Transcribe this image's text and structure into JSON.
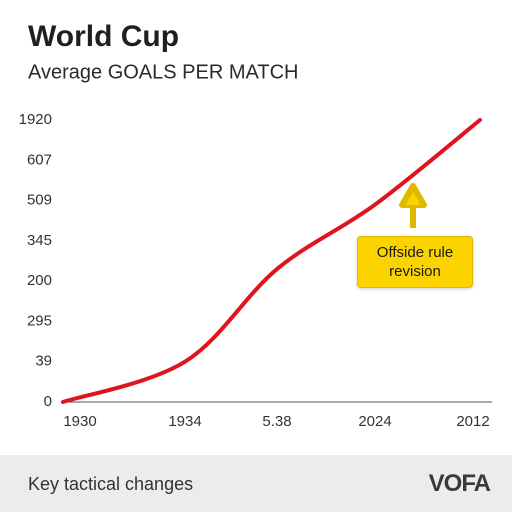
{
  "chart_data": {
    "type": "line",
    "title": "World Cup",
    "subtitle": "Average GOALS PER MATCH",
    "categories": [
      "1930",
      "1934",
      "5.38",
      "2024",
      "2012"
    ],
    "series": [
      {
        "name": null,
        "color": "#e0141e",
        "values": [
          0,
          1.0,
          3.3,
          4.9,
          7.0
        ]
      }
    ],
    "ylim": [
      0,
      7
    ],
    "yticks": [
      {
        "value": 0,
        "label": "0"
      },
      {
        "value": 1,
        "label": "39"
      },
      {
        "value": 2,
        "label": "295"
      },
      {
        "value": 3,
        "label": "200"
      },
      {
        "value": 4,
        "label": "345"
      },
      {
        "value": 5,
        "label": "509"
      },
      {
        "value": 6,
        "label": "607"
      },
      {
        "value": 7,
        "label": "1920"
      }
    ],
    "annotation": "Offside rule revision",
    "footer": "Key tactical changes",
    "brand": "VOFA"
  }
}
